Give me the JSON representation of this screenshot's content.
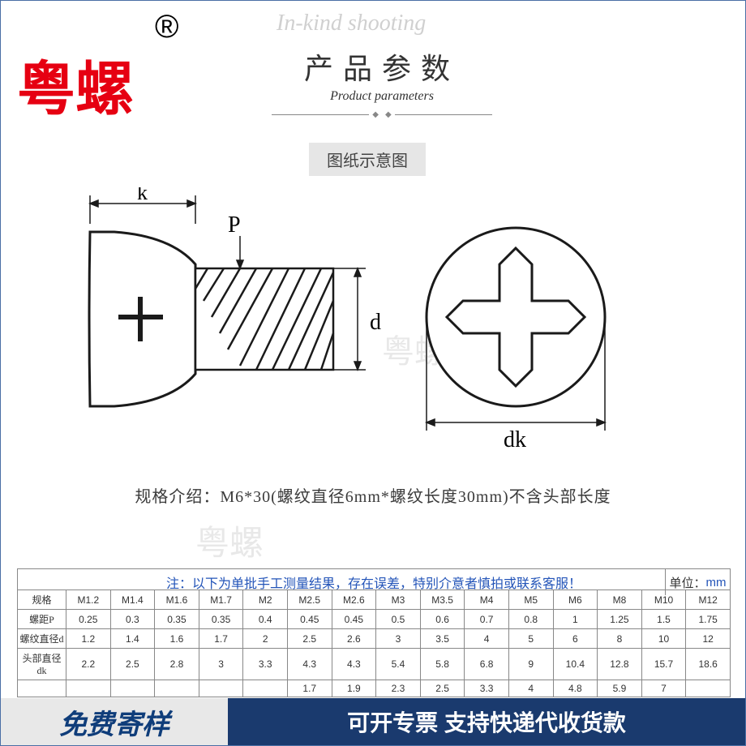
{
  "brand": {
    "name": "粤螺",
    "registered": "®"
  },
  "watermark_script": "In-kind shooting",
  "section": {
    "title_cn": "产品参数",
    "title_en": "Product parameters"
  },
  "sub_label": "图纸示意图",
  "watermark_text": "粤螺",
  "diagram": {
    "labels": {
      "k": "k",
      "P": "P",
      "d": "d",
      "dk": "dk"
    },
    "colors": {
      "stroke": "#1a1a1a",
      "fill_outline": "#2a2a2a"
    }
  },
  "spec_note": "规格介绍：M6*30(螺纹直径6mm*螺纹长度30mm)不含头部长度",
  "table": {
    "note_prefix": "注：",
    "note_text": "以下为单批手工测量结果，存在误差，特别介意者慎拍或联系客服！",
    "unit_label": "单位：",
    "unit": "mm",
    "row_headers": [
      "规格",
      "螺距P",
      "螺纹直径d",
      "头部直径dk",
      ""
    ],
    "columns": [
      "M1.2",
      "M1.4",
      "M1.6",
      "M1.7",
      "M2",
      "M2.5",
      "M2.6",
      "M3",
      "M3.5",
      "M4",
      "M5",
      "M6",
      "M8",
      "M10",
      "M12"
    ],
    "rows": [
      [
        "0.25",
        "0.3",
        "0.35",
        "0.35",
        "0.4",
        "0.45",
        "0.45",
        "0.5",
        "0.6",
        "0.7",
        "0.8",
        "1",
        "1.25",
        "1.5",
        "1.75"
      ],
      [
        "1.2",
        "1.4",
        "1.6",
        "1.7",
        "2",
        "2.5",
        "2.6",
        "3",
        "3.5",
        "4",
        "5",
        "6",
        "8",
        "10",
        "12"
      ],
      [
        "2.2",
        "2.5",
        "2.8",
        "3",
        "3.3",
        "4.3",
        "4.3",
        "5.4",
        "5.8",
        "6.8",
        "9",
        "10.4",
        "12.8",
        "15.7",
        "18.6"
      ],
      [
        "",
        "",
        "",
        "",
        "",
        "1.7",
        "1.9",
        "2.3",
        "2.5",
        "3.3",
        "4",
        "4.8",
        "5.9",
        "7",
        ""
      ]
    ],
    "colors": {
      "border": "#888888",
      "header_text": "#333333",
      "note_text": "#2354b8"
    }
  },
  "footer": {
    "left": "免费寄样",
    "right": "可开专票 支持快递代收货款",
    "colors": {
      "left_bg": "#e8e8e8",
      "left_text": "#0f3d7a",
      "right_bg": "#1a3a6e",
      "right_text": "#ffffff"
    }
  }
}
